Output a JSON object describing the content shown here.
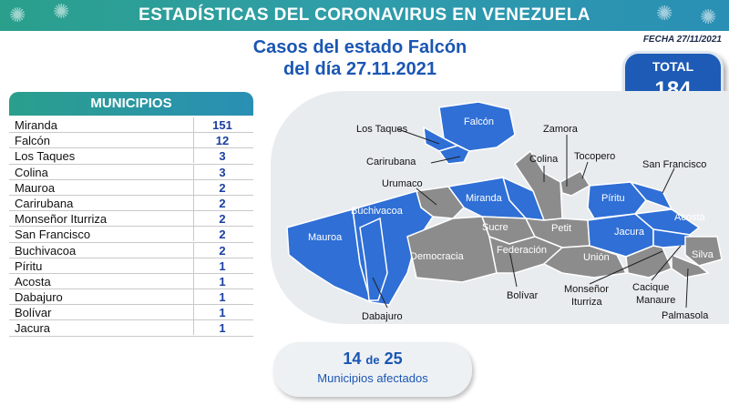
{
  "header": {
    "title": "ESTADÍSTICAS DEL CORONAVIRUS EN VENEZUELA"
  },
  "fecha": "FECHA 27/11/2021",
  "subtitle": {
    "line1": "Casos del estado Falcón",
    "line2": "del día 27.11.2021"
  },
  "total": {
    "label": "TOTAL",
    "value": "184"
  },
  "municipios": {
    "header": "MUNICIPIOS",
    "rows": [
      {
        "name": "Miranda",
        "value": "151"
      },
      {
        "name": "Falcón",
        "value": "12"
      },
      {
        "name": "Los Taques",
        "value": "3"
      },
      {
        "name": "Colina",
        "value": "3"
      },
      {
        "name": "Mauroa",
        "value": "2"
      },
      {
        "name": "Carirubana",
        "value": "2"
      },
      {
        "name": "Monseñor Iturriza",
        "value": "2"
      },
      {
        "name": "San Francisco",
        "value": "2"
      },
      {
        "name": "Buchivacoa",
        "value": "2"
      },
      {
        "name": "Píritu",
        "value": "1"
      },
      {
        "name": "Acosta",
        "value": "1"
      },
      {
        "name": "Dabajuro",
        "value": "1"
      },
      {
        "name": "Bolívar",
        "value": "1"
      },
      {
        "name": "Jacura",
        "value": "1"
      }
    ]
  },
  "map": {
    "colors": {
      "affected": "#2f6fd6",
      "unaffected": "#8c8c8c"
    },
    "labels_inside": {
      "falcon": "Falcón",
      "miranda": "Miranda",
      "buchivacoa": "Buchivacoa",
      "mauroa": "Mauroa",
      "sucre": "Sucre",
      "petit": "Petit",
      "federacion": "Federación",
      "democracia": "Democracia",
      "union": "Unión",
      "piritu": "Píritu",
      "jacura": "Jacura",
      "acosta": "Acosta",
      "silva": "Silva"
    },
    "labels_outside": {
      "los_taques": "Los Taques",
      "carirubana": "Carirubana",
      "urumaco": "Urumaco",
      "zamora": "Zamora",
      "colina": "Colina",
      "tocopero": "Tocopero",
      "san_francisco": "San Francisco",
      "dabajuro": "Dabajuro",
      "bolivar": "Bolívar",
      "monsenor": "Monseñor",
      "iturriza": "Iturriza",
      "cacique": "Cacique",
      "manaure": "Manaure",
      "palmasola": "Palmasola"
    }
  },
  "affected": {
    "count": "14",
    "de": "de",
    "total": "25",
    "text": "Municipios afectados"
  }
}
